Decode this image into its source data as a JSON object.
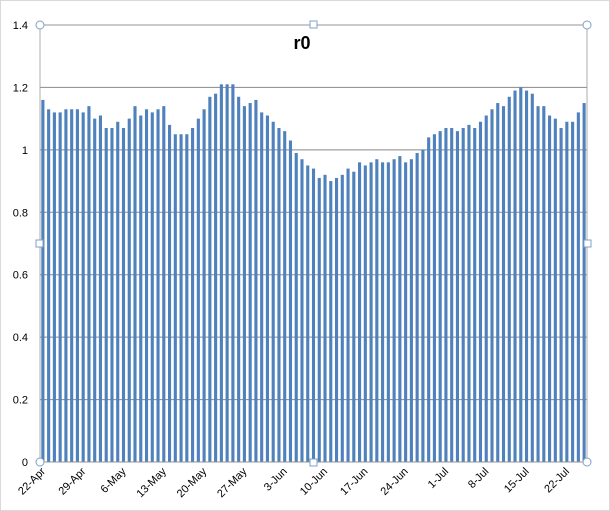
{
  "chart_data": {
    "type": "bar",
    "title": "r0",
    "categories": [
      "22-Apr",
      null,
      null,
      null,
      null,
      null,
      null,
      "29-Apr",
      null,
      null,
      null,
      null,
      null,
      null,
      "6-May",
      null,
      null,
      null,
      null,
      null,
      null,
      "13-May",
      null,
      null,
      null,
      null,
      null,
      null,
      "20-May",
      null,
      null,
      null,
      null,
      null,
      null,
      "27-May",
      null,
      null,
      null,
      null,
      null,
      null,
      "3-Jun",
      null,
      null,
      null,
      null,
      null,
      null,
      "10-Jun",
      null,
      null,
      null,
      null,
      null,
      null,
      "17-Jun",
      null,
      null,
      null,
      null,
      null,
      null,
      "24-Jun",
      null,
      null,
      null,
      null,
      null,
      null,
      "1-Jul",
      null,
      null,
      null,
      null,
      null,
      null,
      "8-Jul",
      null,
      null,
      null,
      null,
      null,
      null,
      "15-Jul",
      null,
      null,
      null,
      null,
      null,
      null,
      "22-Jul",
      null,
      null,
      null
    ],
    "values": [
      1.16,
      1.13,
      1.12,
      1.12,
      1.13,
      1.13,
      1.13,
      1.12,
      1.14,
      1.1,
      1.11,
      1.07,
      1.07,
      1.09,
      1.07,
      1.1,
      1.14,
      1.11,
      1.13,
      1.12,
      1.13,
      1.14,
      1.08,
      1.05,
      1.05,
      1.05,
      1.07,
      1.1,
      1.13,
      1.17,
      1.18,
      1.21,
      1.21,
      1.21,
      1.17,
      1.14,
      1.15,
      1.16,
      1.12,
      1.11,
      1.09,
      1.07,
      1.06,
      1.03,
      0.99,
      0.97,
      0.95,
      0.94,
      0.91,
      0.92,
      0.9,
      0.91,
      0.92,
      0.94,
      0.93,
      0.96,
      0.95,
      0.96,
      0.97,
      0.96,
      0.96,
      0.97,
      0.98,
      0.96,
      0.97,
      0.99,
      1.0,
      1.04,
      1.05,
      1.06,
      1.07,
      1.07,
      1.06,
      1.07,
      1.08,
      1.07,
      1.09,
      1.11,
      1.13,
      1.15,
      1.14,
      1.17,
      1.19,
      1.2,
      1.19,
      1.18,
      1.14,
      1.14,
      1.11,
      1.1,
      1.07,
      1.09,
      1.09,
      1.12,
      1.15
    ],
    "color": "#4f81bd",
    "ylim": [
      0,
      1.4
    ],
    "yticks": [
      0,
      0.2,
      0.4,
      0.6,
      0.8,
      1,
      1.2,
      1.4
    ],
    "grid": true
  }
}
